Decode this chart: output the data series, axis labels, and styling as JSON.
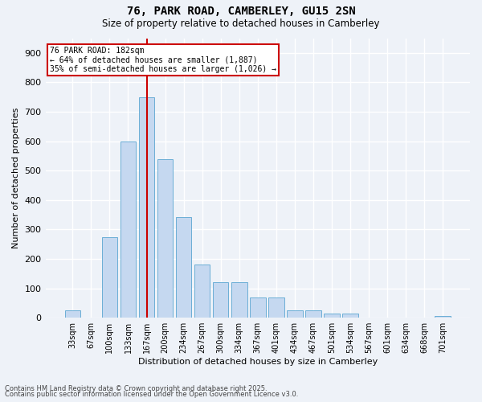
{
  "title1": "76, PARK ROAD, CAMBERLEY, GU15 2SN",
  "title2": "Size of property relative to detached houses in Camberley",
  "xlabel": "Distribution of detached houses by size in Camberley",
  "ylabel": "Number of detached properties",
  "categories": [
    "33sqm",
    "67sqm",
    "100sqm",
    "133sqm",
    "167sqm",
    "200sqm",
    "234sqm",
    "267sqm",
    "300sqm",
    "334sqm",
    "367sqm",
    "401sqm",
    "434sqm",
    "467sqm",
    "501sqm",
    "534sqm",
    "567sqm",
    "601sqm",
    "634sqm",
    "668sqm",
    "701sqm"
  ],
  "values": [
    25,
    0,
    275,
    600,
    750,
    540,
    343,
    180,
    120,
    120,
    68,
    68,
    25,
    25,
    15,
    15,
    0,
    0,
    0,
    0,
    5
  ],
  "bar_color": "#c5d8f0",
  "bar_edge_color": "#6baed6",
  "vline_x_index": 4,
  "vline_color": "#cc0000",
  "annotation_text": "76 PARK ROAD: 182sqm\n← 64% of detached houses are smaller (1,887)\n35% of semi-detached houses are larger (1,026) →",
  "annotation_box_facecolor": "#ffffff",
  "annotation_box_edgecolor": "#cc0000",
  "ylim": [
    0,
    950
  ],
  "yticks": [
    0,
    100,
    200,
    300,
    400,
    500,
    600,
    700,
    800,
    900
  ],
  "background_color": "#eef2f8",
  "grid_color": "#ffffff",
  "footnote1": "Contains HM Land Registry data © Crown copyright and database right 2025.",
  "footnote2": "Contains public sector information licensed under the Open Government Licence v3.0."
}
